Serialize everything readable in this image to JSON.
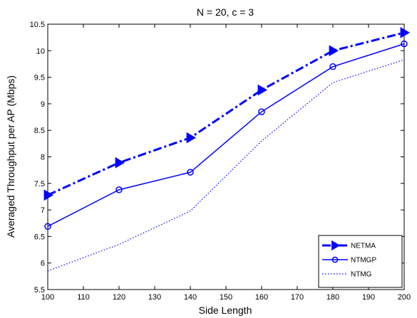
{
  "chart_data": {
    "type": "line",
    "title": "N = 20, c = 3",
    "xlabel": "Side Length",
    "ylabel": "Averaged Throughput per AP (Mbps)",
    "xlim": [
      100,
      200
    ],
    "ylim": [
      5.5,
      10.5
    ],
    "xticks": [
      "100",
      "110",
      "120",
      "130",
      "140",
      "150",
      "160",
      "170",
      "180",
      "190",
      "200"
    ],
    "yticks": [
      "5.5",
      "6",
      "6.5",
      "7",
      "7.5",
      "8",
      "8.5",
      "9",
      "9.5",
      "10",
      "10.5"
    ],
    "x": [
      100,
      120,
      140,
      160,
      180,
      200
    ],
    "grid": false,
    "legend_position": "bottom-right",
    "series": [
      {
        "name": "NETMA",
        "values": [
          7.28,
          7.89,
          8.36,
          9.26,
          10.0,
          10.34
        ],
        "color": "#0000ff",
        "line_style": "dash-dot",
        "marker": "triangle-right"
      },
      {
        "name": "NTMGP",
        "values": [
          6.69,
          7.38,
          7.71,
          8.85,
          9.7,
          10.13
        ],
        "color": "#0000ff",
        "line_style": "solid",
        "marker": "circle"
      },
      {
        "name": "NTMG",
        "values": [
          5.85,
          6.35,
          6.98,
          8.3,
          9.4,
          9.83
        ],
        "color": "#0000ff",
        "line_style": "dotted",
        "marker": "none"
      }
    ]
  }
}
